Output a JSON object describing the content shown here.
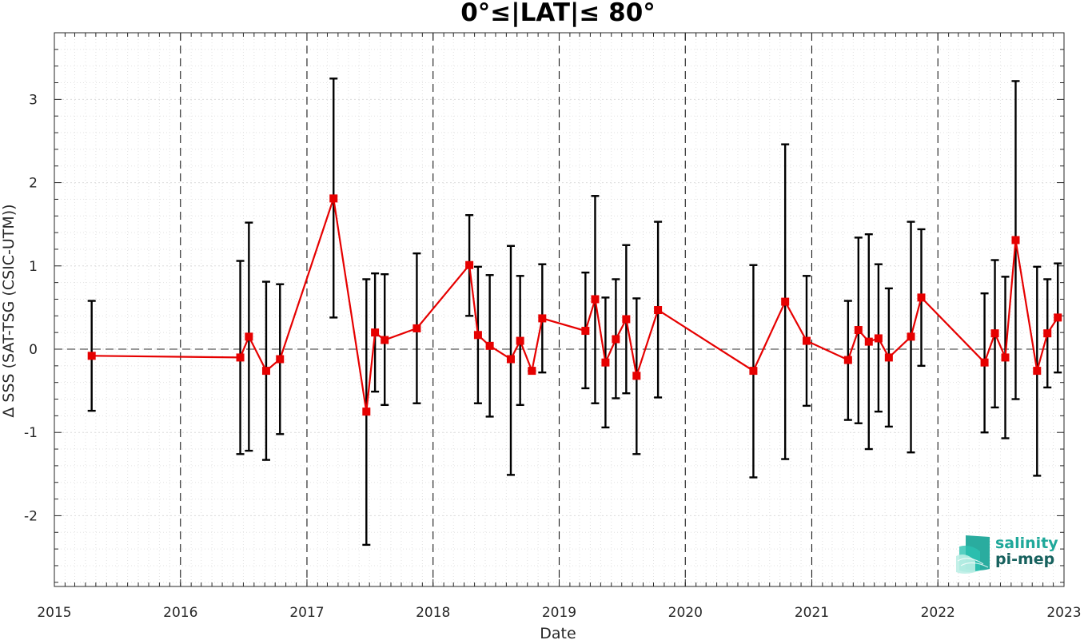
{
  "chart_data": {
    "type": "line",
    "title": "0°≤|LAT|≤ 80°",
    "xlabel": "Date",
    "ylabel": "Δ SSS (SAT-TSG (CSIC-UTM))",
    "xlim": [
      "2015-01-01",
      "2023-01-01"
    ],
    "ylim": [
      -2.85,
      3.8
    ],
    "x_ticks": [
      "2015",
      "2016",
      "2017",
      "2018",
      "2019",
      "2020",
      "2021",
      "2022",
      "2023"
    ],
    "y_ticks": [
      "-2",
      "-1",
      "0",
      "1",
      "2",
      "3"
    ],
    "grid": "minor dotted",
    "year_separators": "dashed",
    "zero_line": "dashed",
    "colors": {
      "series": "#e60000",
      "error_bars": "#000000"
    },
    "series": [
      {
        "name": "",
        "points": [
          {
            "date": "2015-04-19",
            "mean": -0.08,
            "upper": 0.58,
            "lower": -0.74
          },
          {
            "date": "2016-06-22",
            "mean": -0.1,
            "upper": 1.06,
            "lower": -1.26
          },
          {
            "date": "2016-07-17",
            "mean": 0.15,
            "upper": 1.52,
            "lower": -1.22
          },
          {
            "date": "2016-09-05",
            "mean": -0.26,
            "upper": 0.81,
            "lower": -1.33
          },
          {
            "date": "2016-10-15",
            "mean": -0.12,
            "upper": 0.78,
            "lower": -1.02
          },
          {
            "date": "2017-03-19",
            "mean": 1.81,
            "upper": 3.25,
            "lower": 0.38
          },
          {
            "date": "2017-06-22",
            "mean": -0.75,
            "upper": 0.84,
            "lower": -2.35
          },
          {
            "date": "2017-07-17",
            "mean": 0.2,
            "upper": 0.91,
            "lower": -0.51
          },
          {
            "date": "2017-08-14",
            "mean": 0.11,
            "upper": 0.9,
            "lower": -0.67
          },
          {
            "date": "2017-11-15",
            "mean": 0.25,
            "upper": 1.15,
            "lower": -0.65
          },
          {
            "date": "2018-04-16",
            "mean": 1.01,
            "upper": 1.61,
            "lower": 0.4
          },
          {
            "date": "2018-05-11",
            "mean": 0.17,
            "upper": 0.99,
            "lower": -0.65
          },
          {
            "date": "2018-06-14",
            "mean": 0.04,
            "upper": 0.89,
            "lower": -0.81
          },
          {
            "date": "2018-08-14",
            "mean": -0.12,
            "upper": 1.24,
            "lower": -1.51
          },
          {
            "date": "2018-09-10",
            "mean": 0.1,
            "upper": 0.88,
            "lower": -0.67
          },
          {
            "date": "2018-10-14",
            "mean": -0.26,
            "upper": -0.26,
            "lower": -0.26
          },
          {
            "date": "2018-11-13",
            "mean": 0.37,
            "upper": 1.02,
            "lower": -0.28
          },
          {
            "date": "2019-03-18",
            "mean": 0.22,
            "upper": 0.92,
            "lower": -0.47
          },
          {
            "date": "2019-04-15",
            "mean": 0.6,
            "upper": 1.84,
            "lower": -0.65
          },
          {
            "date": "2019-05-15",
            "mean": -0.16,
            "upper": 0.62,
            "lower": -0.94
          },
          {
            "date": "2019-06-14",
            "mean": 0.12,
            "upper": 0.84,
            "lower": -0.59
          },
          {
            "date": "2019-07-14",
            "mean": 0.36,
            "upper": 1.25,
            "lower": -0.53
          },
          {
            "date": "2019-08-13",
            "mean": -0.32,
            "upper": 0.61,
            "lower": -1.26
          },
          {
            "date": "2019-10-14",
            "mean": 0.47,
            "upper": 1.53,
            "lower": -0.58
          },
          {
            "date": "2020-07-16",
            "mean": -0.26,
            "upper": 1.01,
            "lower": -1.54
          },
          {
            "date": "2020-10-16",
            "mean": 0.57,
            "upper": 2.46,
            "lower": -1.32
          },
          {
            "date": "2020-12-17",
            "mean": 0.1,
            "upper": 0.88,
            "lower": -0.68
          },
          {
            "date": "2021-04-16",
            "mean": -0.13,
            "upper": 0.58,
            "lower": -0.85
          },
          {
            "date": "2021-05-16",
            "mean": 0.23,
            "upper": 1.34,
            "lower": -0.89
          },
          {
            "date": "2021-06-15",
            "mean": 0.09,
            "upper": 1.38,
            "lower": -1.2
          },
          {
            "date": "2021-07-13",
            "mean": 0.13,
            "upper": 1.02,
            "lower": -0.75
          },
          {
            "date": "2021-08-12",
            "mean": -0.1,
            "upper": 0.73,
            "lower": -0.93
          },
          {
            "date": "2021-10-15",
            "mean": 0.15,
            "upper": 1.53,
            "lower": -1.24
          },
          {
            "date": "2021-11-14",
            "mean": 0.62,
            "upper": 1.44,
            "lower": -0.2
          },
          {
            "date": "2022-05-16",
            "mean": -0.16,
            "upper": 0.67,
            "lower": -1.0
          },
          {
            "date": "2022-06-15",
            "mean": 0.19,
            "upper": 1.07,
            "lower": -0.7
          },
          {
            "date": "2022-07-15",
            "mean": -0.1,
            "upper": 0.87,
            "lower": -1.07
          },
          {
            "date": "2022-08-14",
            "mean": 1.31,
            "upper": 3.22,
            "lower": -0.6
          },
          {
            "date": "2022-10-15",
            "mean": -0.26,
            "upper": 0.99,
            "lower": -1.52
          },
          {
            "date": "2022-11-14",
            "mean": 0.19,
            "upper": 0.84,
            "lower": -0.46
          },
          {
            "date": "2022-12-14",
            "mean": 0.38,
            "upper": 1.03,
            "lower": -0.28
          }
        ]
      }
    ]
  },
  "logo": {
    "line1": "salinity",
    "line2": "pi-mep",
    "colors": {
      "text1": "#1fa89a",
      "text2": "#17615e",
      "mark": "#1fa89a"
    }
  }
}
